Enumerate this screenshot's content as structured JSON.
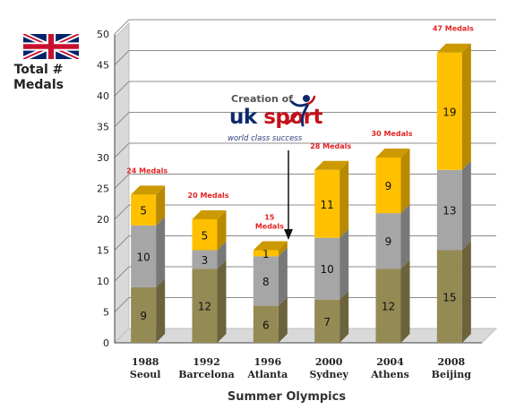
{
  "ylabel": "Total #\nMedals",
  "xlabel": "Summer Olympics",
  "logo": {
    "creation_text": "Creation of",
    "brand_uk": "uk",
    "brand_sport": "sport",
    "tagline": "world class success",
    "icon": "athlete-figure-icon"
  },
  "flag_icon": "union-jack-icon",
  "colors": {
    "gold": "#FFC000",
    "silver": "#A6A6A6",
    "bronze": "#948A54",
    "total_label": "#E32222"
  },
  "chart_data": {
    "type": "bar",
    "stacked": true,
    "categories": [
      [
        "1988",
        "Seoul"
      ],
      [
        "1992",
        "Barcelona"
      ],
      [
        "1996",
        "Atlanta"
      ],
      [
        "2000",
        "Sydney"
      ],
      [
        "2004",
        "Athens"
      ],
      [
        "2008",
        "Beijing"
      ]
    ],
    "series": [
      {
        "key": "bronze",
        "values": [
          9,
          12,
          6,
          7,
          12,
          15
        ]
      },
      {
        "key": "silver",
        "values": [
          10,
          3,
          8,
          10,
          9,
          13
        ]
      },
      {
        "key": "gold",
        "values": [
          5,
          5,
          1,
          11,
          9,
          19
        ]
      }
    ],
    "totals": [
      "24 Medals",
      "20 Medals",
      "15\nMedals",
      "28 Medals",
      "30 Medals",
      "47 Medals"
    ],
    "ylim": [
      0,
      50
    ],
    "yticks": [
      0,
      5,
      10,
      15,
      20,
      25,
      30,
      35,
      40,
      45,
      50
    ],
    "grid": true,
    "annotation": "Creation of UK Sport between 1996 and 2000"
  }
}
